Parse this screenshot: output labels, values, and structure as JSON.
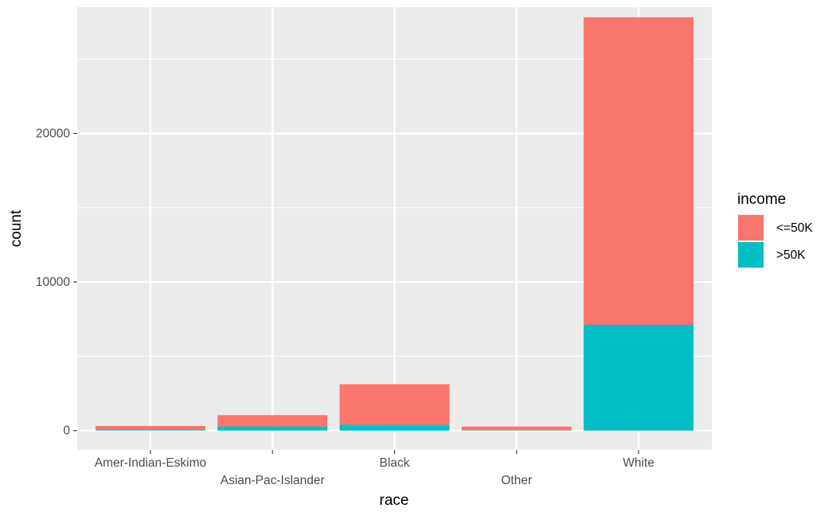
{
  "chart_data": {
    "type": "bar",
    "stacked": true,
    "categories": [
      "Amer-Indian-Eskimo",
      "Asian-Pac-Islander",
      "Black",
      "Other",
      "White"
    ],
    "series": [
      {
        "name": "<=50K",
        "color": "#F8766D",
        "values": [
          275,
          763,
          2737,
          246,
          20699
        ]
      },
      {
        "name": ">50K",
        "color": "#00BFC4",
        "values": [
          36,
          276,
          387,
          25,
          7117
        ]
      }
    ],
    "xlabel": "race",
    "ylabel": "count",
    "yticks": [
      0,
      10000,
      20000
    ],
    "ylim": [
      -1300,
      28500
    ],
    "legend": {
      "title": "income",
      "position": "right"
    },
    "grid": true,
    "panel_background": "#EBEBEB"
  }
}
